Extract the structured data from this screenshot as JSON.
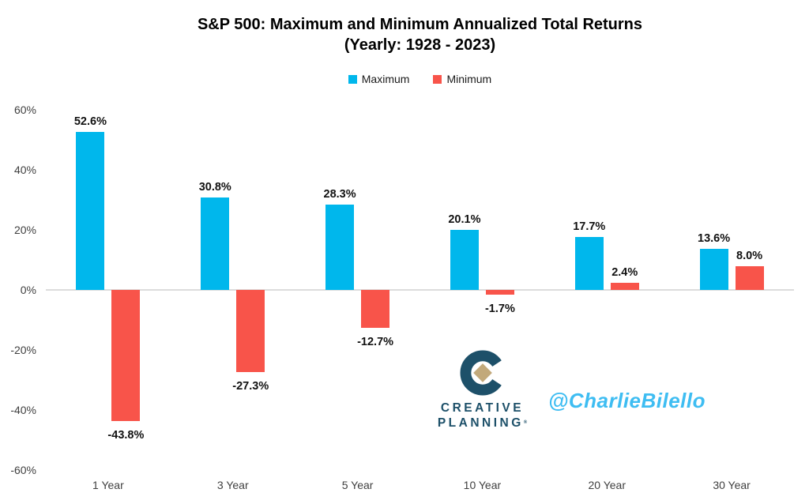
{
  "title": {
    "line1": "S&P 500: Maximum and Minimum Annualized Total Returns",
    "line2": "(Yearly: 1928 - 2023)"
  },
  "chart_data": {
    "type": "bar",
    "categories": [
      "1 Year",
      "3 Year",
      "5 Year",
      "10 Year",
      "20 Year",
      "30 Year"
    ],
    "series": [
      {
        "name": "Maximum",
        "color": "#00b7ec",
        "values": [
          52.6,
          30.8,
          28.3,
          20.1,
          17.7,
          13.6
        ],
        "labels": [
          "52.6%",
          "30.8%",
          "28.3%",
          "20.1%",
          "17.7%",
          "13.6%"
        ]
      },
      {
        "name": "Minimum",
        "color": "#f8544a",
        "values": [
          -43.8,
          -27.3,
          -12.7,
          -1.7,
          2.4,
          8.0
        ],
        "labels": [
          "-43.8%",
          "-27.3%",
          "-12.7%",
          "-1.7%",
          "2.4%",
          "8.0%"
        ]
      }
    ],
    "xlabel": "",
    "ylabel": "",
    "ylim": [
      -60,
      60
    ],
    "yticks": [
      {
        "value": 60,
        "label": "60%"
      },
      {
        "value": 40,
        "label": "40%"
      },
      {
        "value": 20,
        "label": "20%"
      },
      {
        "value": 0,
        "label": "0%"
      },
      {
        "value": -20,
        "label": "-20%"
      },
      {
        "value": -40,
        "label": "-40%"
      },
      {
        "value": -60,
        "label": "-60%"
      }
    ],
    "grid": false,
    "legend_position": "top",
    "zero_line_color": "#dcdcdc"
  },
  "branding": {
    "logo_line1": "CREATIVE",
    "logo_line2": "PLANNING",
    "logo_trademark": "®",
    "logo_color": "#1d5069",
    "logo_diamond_color": "#c2a97b",
    "watermark": "@CharlieBilello",
    "watermark_color": "#3ebdf2"
  }
}
